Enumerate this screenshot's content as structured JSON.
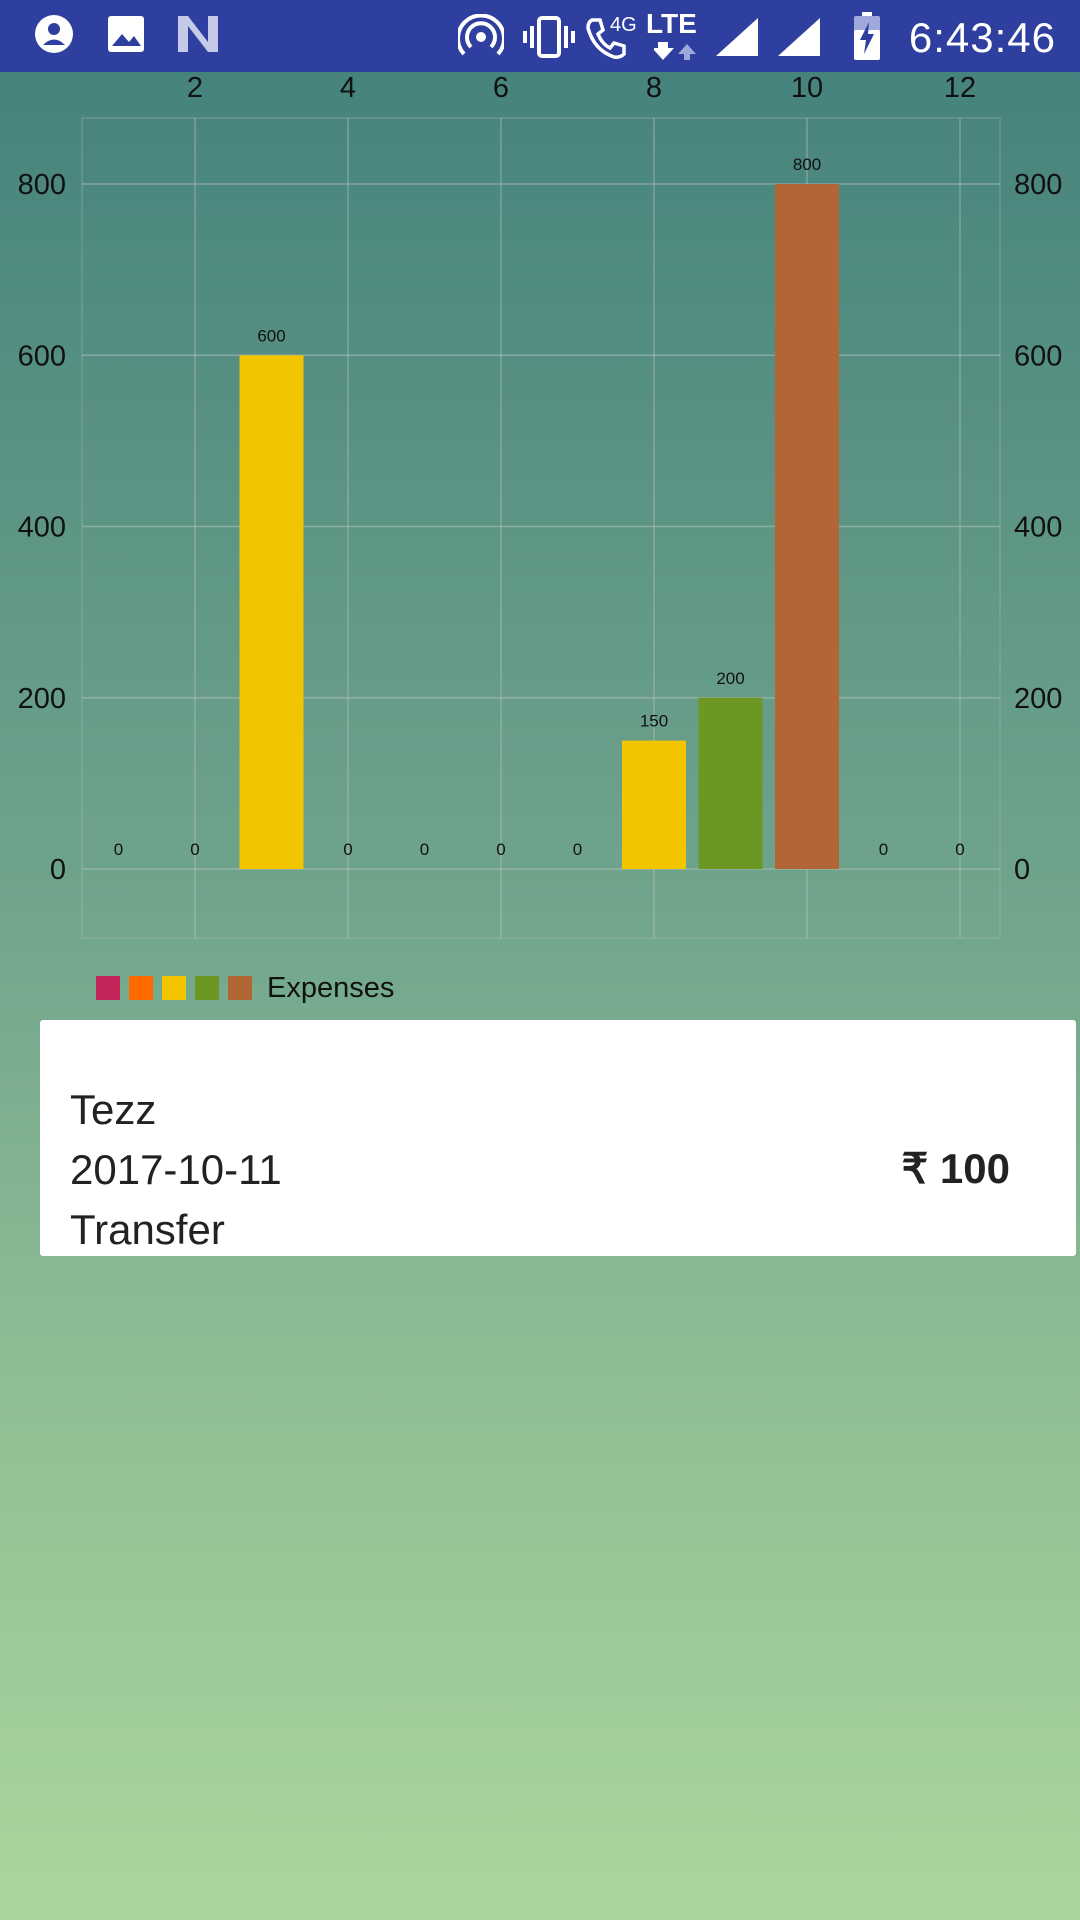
{
  "status_bar": {
    "time": "6:43:46",
    "network_label": "LTE",
    "call_label": "4G",
    "icons": [
      "account-icon",
      "image-icon",
      "n-icon",
      "hotspot-icon",
      "vibrate-icon",
      "call-icon",
      "signal-icon",
      "signal-icon",
      "battery-charging-icon"
    ]
  },
  "chart_data": {
    "type": "bar",
    "categories": [
      "1",
      "2",
      "3",
      "4",
      "5",
      "6",
      "7",
      "8",
      "9",
      "10",
      "11",
      "12"
    ],
    "values": [
      0,
      0,
      600,
      0,
      0,
      0,
      0,
      150,
      200,
      800,
      0,
      0
    ],
    "x_ticks": [
      "2",
      "4",
      "6",
      "8",
      "10",
      "12"
    ],
    "y_ticks": [
      "0",
      "200",
      "400",
      "600",
      "800"
    ],
    "ylim": [
      0,
      800
    ],
    "bar_colors": [
      "",
      "",
      "#f2c500",
      "",
      "",
      "",
      "",
      "#f2c500",
      "#6b9722",
      "#b26535",
      "",
      ""
    ],
    "legend": {
      "label": "Expenses",
      "colors": [
        "#c4265a",
        "#ff6a00",
        "#f2c500",
        "#6b9722",
        "#b26535"
      ]
    },
    "grid": true
  },
  "card": {
    "title": "Tezz",
    "date": "2017-10-11",
    "type": "Transfer",
    "amount": "₹ 100"
  }
}
